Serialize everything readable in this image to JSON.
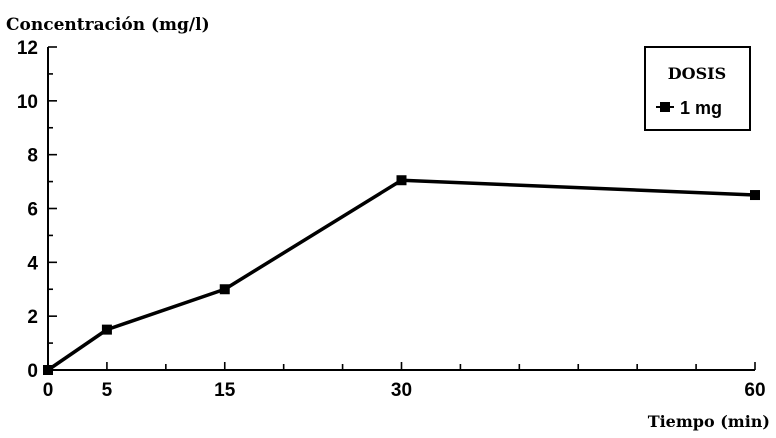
{
  "chart_data": {
    "type": "line",
    "title": "",
    "ylabel": "Concentración (mg/l)",
    "xlabel": "Tiempo (min)",
    "xlim": [
      0,
      60
    ],
    "ylim": [
      0,
      12
    ],
    "x_ticks": [
      0,
      5,
      15,
      30,
      60
    ],
    "y_ticks": [
      0,
      2,
      4,
      6,
      8,
      10,
      12
    ],
    "grid": false,
    "legend": {
      "title": "DOSIS",
      "placement": "top-right"
    },
    "series": [
      {
        "name": "1 mg",
        "color": "#000000",
        "marker": "square",
        "x": [
          0,
          5,
          15,
          30,
          60
        ],
        "y": [
          0,
          1.5,
          3,
          7.05,
          6.5
        ]
      }
    ]
  }
}
